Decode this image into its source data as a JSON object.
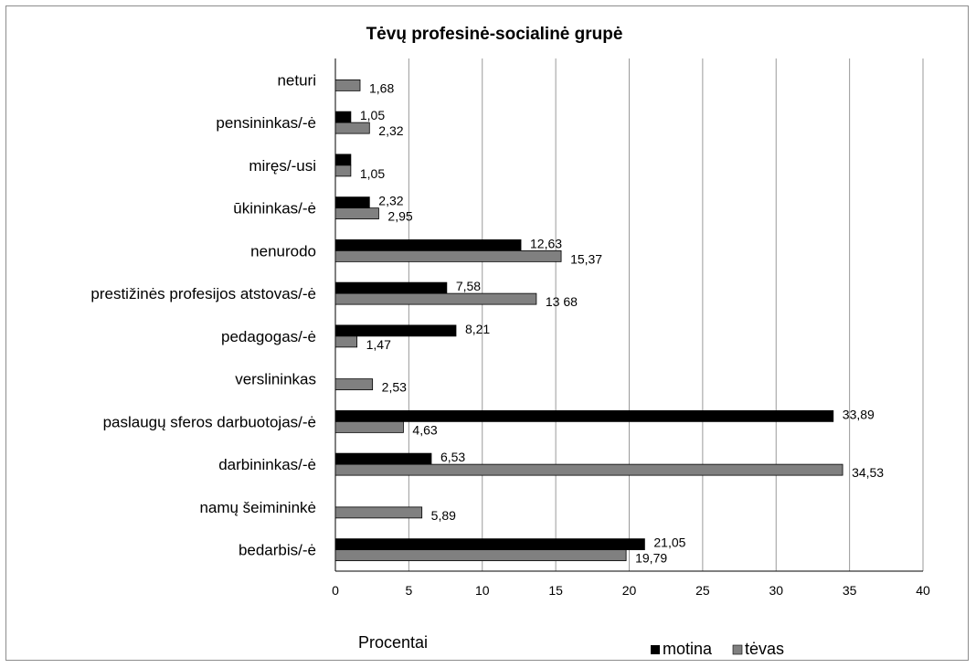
{
  "chart_data": {
    "type": "bar",
    "orientation": "horizontal",
    "title": "Tėvų profesinė-socialinė grupė",
    "xlabel": "Procentai",
    "ylabel": "",
    "xlim": [
      0,
      40
    ],
    "x_ticks": [
      "0",
      "5",
      "10",
      "15",
      "20",
      "25",
      "30",
      "35",
      "40"
    ],
    "grid": "vertical",
    "legend_position": "bottom",
    "categories": [
      "neturi",
      "pensininkas/-ė",
      "miręs/-usi",
      "ūkininkas/-ė",
      "nenurodo",
      "prestižinės profesijos atstovas/-ė",
      "pedagogas/-ė",
      "verslininkas",
      "paslaugų sferos darbuotojas/-ė",
      "darbininkas/-ė",
      "namų šeimininkė",
      "bedarbis/-ė"
    ],
    "series": [
      {
        "name": "motina",
        "color": "#000000",
        "values": [
          null,
          1.05,
          1.05,
          2.32,
          12.63,
          7.58,
          8.21,
          null,
          33.89,
          6.53,
          null,
          21.05
        ],
        "labels": [
          "",
          "1,05",
          "",
          "2,32",
          "12,63",
          "7,58",
          "8,21",
          "",
          "33,89",
          "6,53",
          "",
          "21,05"
        ]
      },
      {
        "name": "tėvas",
        "color": "#808080",
        "values": [
          1.68,
          2.32,
          1.05,
          2.95,
          15.37,
          13.68,
          1.47,
          2.53,
          4.63,
          34.53,
          5.89,
          19.79
        ],
        "labels": [
          "1,68",
          "2,32",
          "1,05",
          "2,95",
          "15,37",
          "13 68",
          "1,47",
          "2,53",
          "4,63",
          "34,53",
          "5,89",
          "19,79"
        ]
      }
    ]
  }
}
